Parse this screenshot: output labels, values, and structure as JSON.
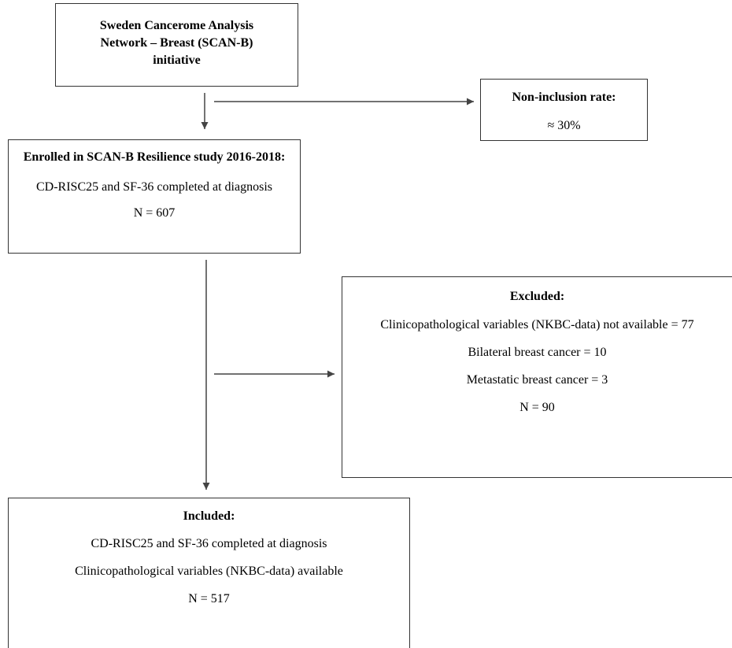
{
  "nodes": [
    {
      "lines": [
        "Sweden Cancerome Analysis",
        "Network – Breast (SCAN-B)",
        "initiative"
      ]
    },
    {
      "title": "Non-inclusion rate:",
      "lines": [
        "≈ 30%"
      ]
    },
    {
      "title": "Enrolled in SCAN-B Resilience study 2016-2018:",
      "lines": [
        "CD-RISC25 and SF-36 completed at diagnosis",
        "N = 607"
      ]
    },
    {
      "title": "Excluded:",
      "lines": [
        "Clinicopathological variables (NKBC-data) not available = 77",
        "Bilateral breast cancer = 10",
        "Metastatic breast cancer = 3",
        "N = 90"
      ]
    },
    {
      "title": "Included:",
      "lines": [
        "CD-RISC25 and SF-36 completed at diagnosis",
        "Clinicopathological variables (NKBC-data) available",
        "N = 517"
      ]
    }
  ]
}
